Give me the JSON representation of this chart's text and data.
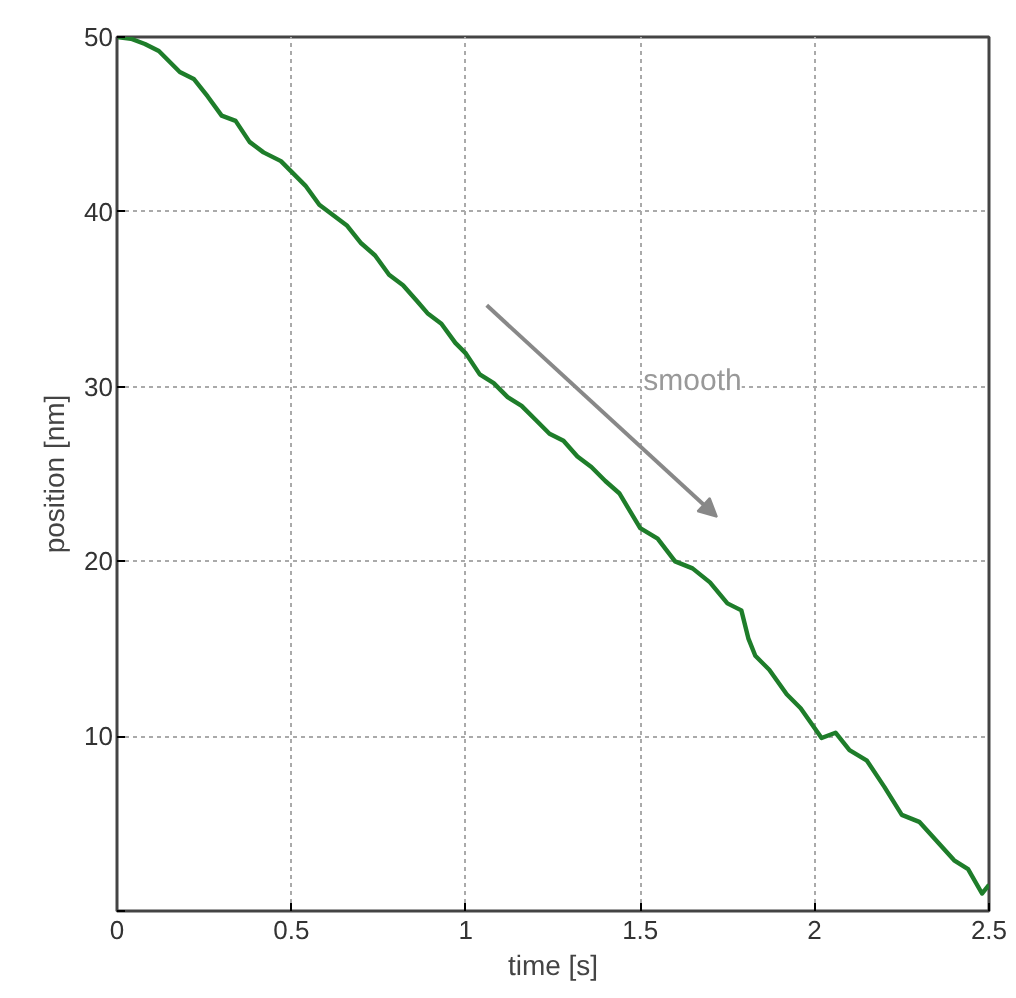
{
  "chart_data": {
    "type": "line",
    "xlabel": "time [s]",
    "ylabel": "position [nm]",
    "x": [
      0,
      0.04,
      0.08,
      0.12,
      0.14,
      0.18,
      0.22,
      0.26,
      0.3,
      0.34,
      0.38,
      0.42,
      0.47,
      0.5,
      0.54,
      0.58,
      0.62,
      0.66,
      0.7,
      0.74,
      0.78,
      0.82,
      0.86,
      0.89,
      0.93,
      0.97,
      1.0,
      1.04,
      1.08,
      1.12,
      1.16,
      1.2,
      1.24,
      1.28,
      1.32,
      1.36,
      1.4,
      1.44,
      1.5,
      1.55,
      1.6,
      1.65,
      1.7,
      1.75,
      1.79,
      1.81,
      1.83,
      1.87,
      1.92,
      1.96,
      2.02,
      2.06,
      2.1,
      2.15,
      2.2,
      2.25,
      2.3,
      2.35,
      2.4,
      2.44,
      2.48,
      2.5
    ],
    "series": [
      {
        "color": "#1e7d2a",
        "values": [
          50,
          49.9,
          49.6,
          49.2,
          48.8,
          48.0,
          47.6,
          46.6,
          45.5,
          45.2,
          44.0,
          43.4,
          42.9,
          42.3,
          41.5,
          40.4,
          39.8,
          39.2,
          38.2,
          37.5,
          36.4,
          35.8,
          34.9,
          34.2,
          33.6,
          32.5,
          31.9,
          30.7,
          30.2,
          29.4,
          28.9,
          28.1,
          27.3,
          26.9,
          26.0,
          25.4,
          24.6,
          23.9,
          21.9,
          21.3,
          20.0,
          19.6,
          18.8,
          17.6,
          17.2,
          15.6,
          14.6,
          13.8,
          12.4,
          11.6,
          9.9,
          10.2,
          9.2,
          8.6,
          7.1,
          5.5,
          5.1,
          4.0,
          2.9,
          2.4,
          1.0,
          1.5
        ]
      }
    ],
    "xlim": [
      0,
      2.5
    ],
    "ylim": [
      0,
      50
    ],
    "xticks": [
      0,
      0.5,
      1,
      1.5,
      2,
      2.5
    ],
    "yticks": [
      {
        "value": 0,
        "label": null
      },
      10,
      20,
      30,
      40,
      50
    ],
    "grid": true,
    "marker": "none",
    "line_style": "solid",
    "annotations": [
      "smooth"
    ]
  }
}
